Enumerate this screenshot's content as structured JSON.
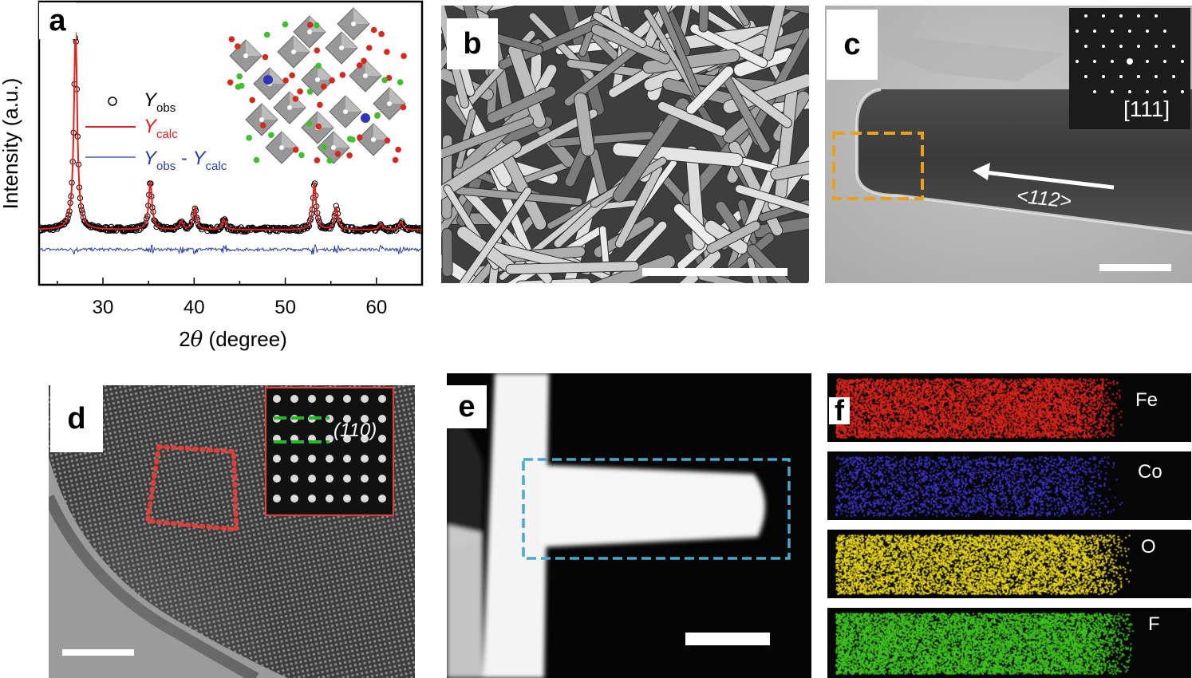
{
  "panels": {
    "a": {
      "label": "a",
      "legend": {
        "obs": "Y",
        "obs_sub": "obs",
        "calc": "Y",
        "calc_sub": "calc",
        "diff_a": "Y",
        "diff_a_sub": "obs",
        "diff_sep": " - ",
        "diff_b": "Y",
        "diff_b_sub": "calc"
      }
    },
    "b": {
      "label": "b"
    },
    "c": {
      "label": "c",
      "saed_zone": "[111]",
      "growth_direction": "<112>"
    },
    "d": {
      "label": "d",
      "plane": "(110)"
    },
    "e": {
      "label": "e"
    },
    "f": {
      "label": "f",
      "elements": [
        "Fe",
        "Co",
        "O",
        "F"
      ]
    }
  },
  "colors": {
    "obs": "#000000",
    "calc": "#e0201b",
    "diff": "#2b3fa0",
    "fe": "#d8261c",
    "co": "#3b35c8",
    "o": "#e8d61a",
    "f": "#3fc21f",
    "box_c": "#e8a21a",
    "box_d": "#e0403a",
    "box_e": "#4aa8d0",
    "lattice": "#22b82a"
  },
  "chart_data": {
    "type": "line",
    "xlabel": "2θ (degree)",
    "ylabel": "Intensity (a.u.)",
    "xlim": [
      23,
      65
    ],
    "xticks": [
      30,
      40,
      50,
      60
    ],
    "xtick_labels": [
      "30",
      "40",
      "50",
      "60"
    ],
    "ylim": [
      0,
      100
    ],
    "series": [
      {
        "name": "Y_obs",
        "style": "markers"
      },
      {
        "name": "Y_calc",
        "style": "line"
      },
      {
        "name": "Y_obs - Y_calc",
        "style": "line"
      }
    ],
    "peaks": [
      {
        "x": 27.0,
        "y": 100
      },
      {
        "x": 35.2,
        "y": 24
      },
      {
        "x": 38.6,
        "y": 4
      },
      {
        "x": 40.1,
        "y": 11
      },
      {
        "x": 43.3,
        "y": 5
      },
      {
        "x": 53.2,
        "y": 23
      },
      {
        "x": 55.6,
        "y": 11
      },
      {
        "x": 60.5,
        "y": 3
      },
      {
        "x": 62.7,
        "y": 4
      }
    ],
    "baseline": 6,
    "difference_offset": -4
  }
}
